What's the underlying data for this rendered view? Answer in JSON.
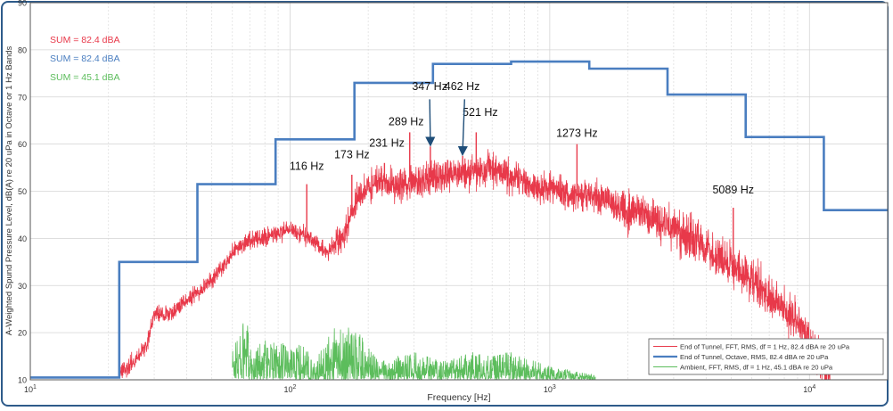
{
  "chart_data": {
    "type": "line",
    "title": "",
    "xlabel": "Frequency [Hz]",
    "ylabel": "A-Weighted Spund Pressure Level, dB(A) re 20 uPa in Octave or 1 Hz Bands",
    "x_scale": "log",
    "xlim": [
      10,
      20000
    ],
    "ylim": [
      10,
      90
    ],
    "x_ticks": [
      {
        "value": 10,
        "base": "10",
        "exp": "1"
      },
      {
        "value": 100,
        "base": "10",
        "exp": "2"
      },
      {
        "value": 1000,
        "base": "10",
        "exp": "3"
      },
      {
        "value": 10000,
        "base": "10",
        "exp": "4"
      }
    ],
    "y_ticks": [
      "10",
      "20",
      "30",
      "40",
      "50",
      "60",
      "70",
      "80",
      "90"
    ],
    "grid": true,
    "colors": {
      "fft": "#e8394a",
      "octave": "#4a7ec0",
      "ambient": "#5cbd5c",
      "arrow": "#1f4e79"
    },
    "sums": [
      {
        "text": "SUM = 82.4 dBA",
        "color": "#e8394a"
      },
      {
        "text": "SUM = 82.4 dBA",
        "color": "#4a7ec0"
      },
      {
        "text": "SUM = 45.1 dBA",
        "color": "#5cbd5c"
      }
    ],
    "legend": {
      "position": "bottom-right",
      "entries": [
        "End of Tunnel, FFT, RMS, df = 1 Hz, 82.4 dBA re 20 uPa",
        "End of Tunnel, Octave, RMS, 82.4 dBA re 20 uPa",
        "Ambient, FFT, RMS, df = 1 Hz, 45.1 dBA re 20 uPa"
      ]
    },
    "series": [
      {
        "name": "End of Tunnel, Octave, RMS, 82.4 dBA re 20 uPa",
        "kind": "step",
        "x": [
          10,
          22,
          44,
          88,
          177,
          355,
          710,
          1420,
          2840,
          5680,
          11360,
          20000
        ],
        "y": [
          10.5,
          35,
          51.5,
          61,
          73,
          77,
          77.5,
          76,
          70.5,
          61.5,
          46,
          46
        ]
      },
      {
        "name": "End of Tunnel, FFT, RMS, df = 1 Hz, 82.4 dBA re 20 uPa",
        "kind": "envelope",
        "x": [
          22,
          25,
          28,
          30,
          35,
          40,
          50,
          60,
          70,
          80,
          90,
          100,
          120,
          140,
          160,
          173,
          180,
          200,
          231,
          260,
          289,
          320,
          350,
          400,
          462,
          521,
          600,
          700,
          800,
          900,
          1000,
          1200,
          1300,
          1500,
          1800,
          2000,
          2500,
          3000,
          3500,
          4000,
          5000,
          6000,
          7000,
          8000,
          9000,
          10000,
          11000,
          12000
        ],
        "y": [
          11,
          14,
          17,
          24,
          24,
          27,
          31,
          37,
          40,
          40,
          41,
          42,
          40,
          37,
          40,
          45,
          48,
          51,
          52,
          51,
          52,
          52,
          53,
          53,
          54,
          54,
          55,
          53,
          52,
          50,
          51,
          49,
          49,
          49,
          47,
          46,
          44,
          42,
          40,
          38,
          34,
          31,
          28,
          25,
          22,
          18,
          14,
          10
        ],
        "peaks": [
          {
            "f": 116,
            "level": 51.5,
            "label": "116 Hz"
          },
          {
            "f": 173,
            "level": 53.5,
            "label": "173 Hz"
          },
          {
            "f": 231,
            "level": 56,
            "label": "231 Hz"
          },
          {
            "f": 289,
            "level": 62.5,
            "label": "289 Hz"
          },
          {
            "f": 347,
            "level": 59.5,
            "label": "347 Hz"
          },
          {
            "f": 462,
            "level": 57.5,
            "label": "462 Hz"
          },
          {
            "f": 521,
            "level": 62.5,
            "label": "521 Hz"
          },
          {
            "f": 1273,
            "level": 60,
            "label": "1273 Hz"
          },
          {
            "f": 5089,
            "level": 46.5,
            "label": "5089 Hz"
          }
        ]
      },
      {
        "name": "Ambient, FFT, RMS, df = 1 Hz, 45.1 dBA re 20 uPa",
        "kind": "bursts",
        "x": [
          60,
          65,
          70,
          72,
          80,
          85,
          95,
          110,
          125,
          150,
          160,
          175,
          220,
          300,
          400,
          500,
          600,
          700,
          800,
          1000,
          1200,
          1500
        ],
        "y": [
          17,
          22,
          22,
          15,
          20,
          18,
          18,
          18,
          14,
          22,
          20,
          22,
          14,
          16,
          14,
          16,
          15,
          16,
          15,
          13,
          12,
          11
        ]
      }
    ],
    "annotations": [
      {
        "text": "116 Hz",
        "f": 116,
        "level": 54.5
      },
      {
        "text": "173 Hz",
        "f": 173,
        "level": 57
      },
      {
        "text": "231 Hz",
        "f": 236,
        "level": 59.5
      },
      {
        "text": "289 Hz",
        "f": 280,
        "level": 64
      },
      {
        "text": "347 Hz",
        "f": 345,
        "level": 71.5
      },
      {
        "text": "462 Hz",
        "f": 460,
        "level": 71.5
      },
      {
        "text": "521 Hz",
        "f": 540,
        "level": 66
      },
      {
        "text": "1273 Hz",
        "f": 1273,
        "level": 61.5
      },
      {
        "text": "5089 Hz",
        "f": 5089,
        "level": 49.5
      }
    ],
    "arrows": [
      {
        "from_f": 345,
        "from_level": 69.5,
        "to_f": 347,
        "to_level": 60.5
      },
      {
        "from_f": 470,
        "from_level": 69.5,
        "to_f": 462,
        "to_level": 58.5
      }
    ]
  }
}
